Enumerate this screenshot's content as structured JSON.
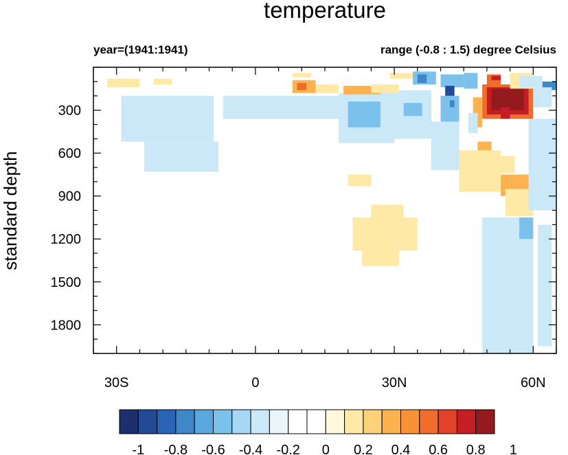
{
  "chart_data": {
    "type": "heatmap",
    "title": "temperature",
    "left_subtitle": "year=(1941:1941)",
    "right_subtitle": "range (-0.8 : 1.5) degree Celsius",
    "ylabel": "standard depth",
    "xlabel": "",
    "x_range": [
      -35,
      65
    ],
    "y_range": [
      0,
      2000
    ],
    "y_reversed": true,
    "x_ticks": [
      {
        "value": -30,
        "label": "30S"
      },
      {
        "value": 0,
        "label": "0"
      },
      {
        "value": 30,
        "label": "30N"
      },
      {
        "value": 60,
        "label": "60N"
      }
    ],
    "y_ticks": [
      {
        "value": 300,
        "label": "300"
      },
      {
        "value": 600,
        "label": "600"
      },
      {
        "value": 900,
        "label": "900"
      },
      {
        "value": 1200,
        "label": "1200"
      },
      {
        "value": 1500,
        "label": "1500"
      },
      {
        "value": 1800,
        "label": "1800"
      }
    ],
    "colorbar": {
      "colors": [
        "#1d2f6e",
        "#234a97",
        "#2b63b6",
        "#3f87c8",
        "#5ba6dc",
        "#7cc0ec",
        "#a6d8f5",
        "#cbe8f8",
        "#eaf6fc",
        "#ffffff",
        "#ffffff",
        "#fff8dc",
        "#fee9a6",
        "#fdd07a",
        "#fcb24e",
        "#f89236",
        "#f06b2c",
        "#e0422a",
        "#c41e25",
        "#951a1d"
      ],
      "tick_labels": [
        "-1",
        "-0.8",
        "-0.6",
        "-0.4",
        "-0.2",
        "0",
        "0.2",
        "0.4",
        "0.6",
        "0.8",
        "1"
      ]
    },
    "patches": [
      {
        "lat": [
          -32,
          -25
        ],
        "depth": [
          80,
          140
        ],
        "value": 0.2
      },
      {
        "lat": [
          -22,
          -18
        ],
        "depth": [
          80,
          120
        ],
        "value": 0.2
      },
      {
        "lat": [
          -29,
          -9
        ],
        "depth": [
          200,
          520
        ],
        "value": -0.2
      },
      {
        "lat": [
          -24,
          -8
        ],
        "depth": [
          520,
          730
        ],
        "value": -0.2
      },
      {
        "lat": [
          -7,
          19
        ],
        "depth": [
          200,
          360
        ],
        "value": -0.2
      },
      {
        "lat": [
          18,
          30
        ],
        "depth": [
          180,
          530
        ],
        "value": -0.2
      },
      {
        "lat": [
          20,
          27
        ],
        "depth": [
          240,
          420
        ],
        "value": -0.4
      },
      {
        "lat": [
          28,
          38
        ],
        "depth": [
          160,
          500
        ],
        "value": -0.2
      },
      {
        "lat": [
          32,
          36
        ],
        "depth": [
          250,
          340
        ],
        "value": -0.4
      },
      {
        "lat": [
          8,
          12
        ],
        "depth": [
          40,
          70
        ],
        "value": 0.2
      },
      {
        "lat": [
          8,
          13
        ],
        "depth": [
          90,
          180
        ],
        "value": 0.4
      },
      {
        "lat": [
          9,
          11
        ],
        "depth": [
          110,
          160
        ],
        "value": 0.6
      },
      {
        "lat": [
          13,
          18
        ],
        "depth": [
          120,
          180
        ],
        "value": 0.2
      },
      {
        "lat": [
          19,
          27
        ],
        "depth": [
          130,
          190
        ],
        "value": 0.4
      },
      {
        "lat": [
          25,
          31
        ],
        "depth": [
          120,
          180
        ],
        "value": 0.2
      },
      {
        "lat": [
          29,
          37
        ],
        "depth": [
          40,
          80
        ],
        "value": 0.2
      },
      {
        "lat": [
          37,
          39
        ],
        "depth": [
          50,
          100
        ],
        "value": 0.2
      },
      {
        "lat": [
          34,
          39
        ],
        "depth": [
          30,
          120
        ],
        "value": -0.4
      },
      {
        "lat": [
          35,
          37
        ],
        "depth": [
          50,
          110
        ],
        "value": -0.6
      },
      {
        "lat": [
          40,
          45
        ],
        "depth": [
          50,
          140
        ],
        "value": -0.4
      },
      {
        "lat": [
          41,
          43
        ],
        "depth": [
          130,
          200
        ],
        "value": -0.8
      },
      {
        "lat": [
          40,
          44
        ],
        "depth": [
          200,
          480
        ],
        "value": -0.4
      },
      {
        "lat": [
          42,
          43
        ],
        "depth": [
          230,
          280
        ],
        "value": -0.6
      },
      {
        "lat": [
          45,
          48
        ],
        "depth": [
          40,
          150
        ],
        "value": -0.4
      },
      {
        "lat": [
          47,
          49
        ],
        "depth": [
          210,
          420
        ],
        "value": 0.4
      },
      {
        "lat": [
          46,
          48
        ],
        "depth": [
          320,
          460
        ],
        "value": -0.2
      },
      {
        "lat": [
          49,
          51
        ],
        "depth": [
          180,
          270
        ],
        "value": 0.2
      },
      {
        "lat": [
          50,
          53
        ],
        "depth": [
          50,
          120
        ],
        "value": 0.6
      },
      {
        "lat": [
          51,
          53
        ],
        "depth": [
          60,
          90
        ],
        "value": 0.8
      },
      {
        "lat": [
          49,
          60
        ],
        "depth": [
          120,
          360
        ],
        "value": 0.6
      },
      {
        "lat": [
          50,
          59
        ],
        "depth": [
          140,
          330
        ],
        "value": 0.8
      },
      {
        "lat": [
          51,
          58
        ],
        "depth": [
          150,
          300
        ],
        "value": 1.0
      },
      {
        "lat": [
          53,
          56
        ],
        "depth": [
          160,
          260
        ],
        "value": 1.4
      },
      {
        "lat": [
          53,
          55
        ],
        "depth": [
          280,
          360
        ],
        "value": 0.8
      },
      {
        "lat": [
          55,
          60
        ],
        "depth": [
          40,
          150
        ],
        "value": 0.2
      },
      {
        "lat": [
          57,
          62
        ],
        "depth": [
          60,
          140
        ],
        "value": -0.2
      },
      {
        "lat": [
          62,
          65
        ],
        "depth": [
          100,
          160
        ],
        "value": -0.6
      },
      {
        "lat": [
          60,
          64
        ],
        "depth": [
          140,
          280
        ],
        "value": -0.2
      },
      {
        "lat": [
          63,
          65
        ],
        "depth": [
          400,
          480
        ],
        "value": 0.4
      },
      {
        "lat": [
          48,
          51
        ],
        "depth": [
          520,
          680
        ],
        "value": 0.4
      },
      {
        "lat": [
          44,
          53
        ],
        "depth": [
          580,
          870
        ],
        "value": 0.2
      },
      {
        "lat": [
          53,
          56
        ],
        "depth": [
          620,
          740
        ],
        "value": 0.2
      },
      {
        "lat": [
          53,
          59
        ],
        "depth": [
          750,
          900
        ],
        "value": 0.4
      },
      {
        "lat": [
          54,
          60
        ],
        "depth": [
          850,
          1040
        ],
        "value": 0.2
      },
      {
        "lat": [
          59,
          65
        ],
        "depth": [
          360,
          1000
        ],
        "value": -0.2
      },
      {
        "lat": [
          38,
          44
        ],
        "depth": [
          380,
          720
        ],
        "value": -0.2
      },
      {
        "lat": [
          20,
          25
        ],
        "depth": [
          750,
          830
        ],
        "value": 0.2
      },
      {
        "lat": [
          25,
          32
        ],
        "depth": [
          960,
          1050
        ],
        "value": 0.2
      },
      {
        "lat": [
          21,
          35
        ],
        "depth": [
          1050,
          1280
        ],
        "value": 0.2
      },
      {
        "lat": [
          23,
          31
        ],
        "depth": [
          1280,
          1390
        ],
        "value": 0.2
      },
      {
        "lat": [
          49,
          60
        ],
        "depth": [
          1050,
          2000
        ],
        "value": -0.2
      },
      {
        "lat": [
          53,
          60
        ],
        "depth": [
          1050,
          1550
        ],
        "value": -0.2
      },
      {
        "lat": [
          57,
          60
        ],
        "depth": [
          1050,
          1200
        ],
        "value": -0.4
      },
      {
        "lat": [
          54,
          57
        ],
        "depth": [
          1400,
          1700
        ],
        "value": -0.2
      },
      {
        "lat": [
          61,
          64
        ],
        "depth": [
          1100,
          1950
        ],
        "value": -0.2
      }
    ]
  }
}
